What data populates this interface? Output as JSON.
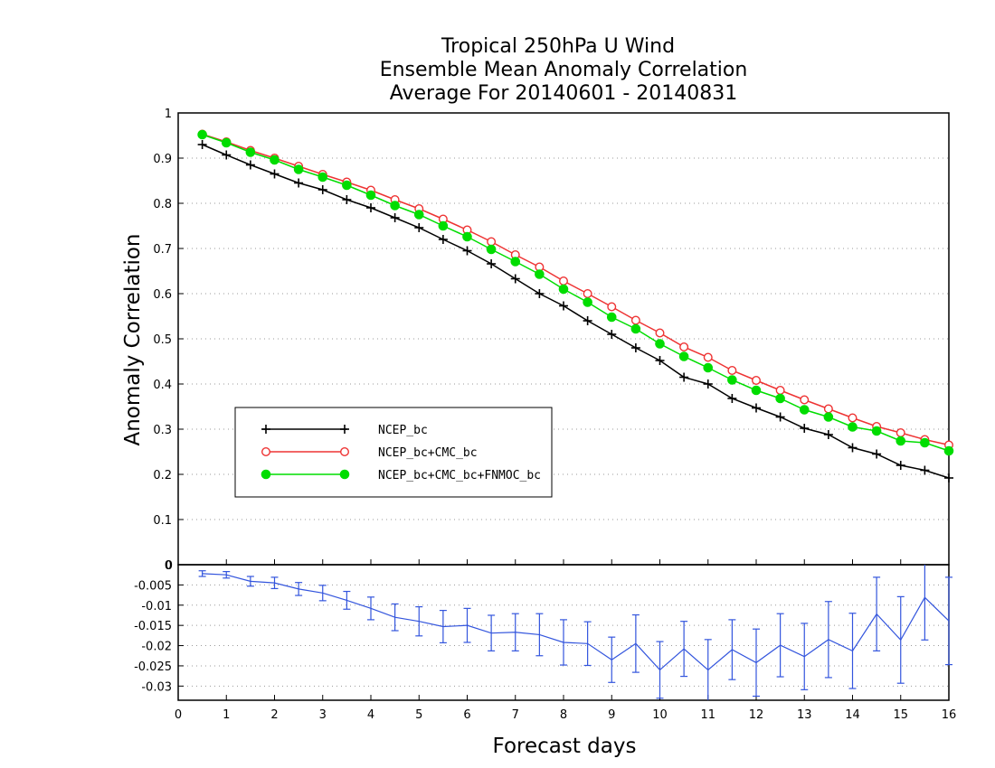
{
  "chart_data": [
    {
      "type": "line",
      "title_lines": [
        "Tropical 250hPa U Wind",
        "Ensemble Mean Anomaly Correlation",
        "Average For 20140601 - 20140831"
      ],
      "ylabel": "Anomaly Correlation",
      "xlim": [
        0,
        16
      ],
      "ylim": [
        0,
        1
      ],
      "yticks": [
        "0",
        "0.1",
        "0.2",
        "0.3",
        "0.4",
        "0.5",
        "0.6",
        "0.7",
        "0.8",
        "0.9",
        "1"
      ],
      "ytick_values": [
        0,
        0.1,
        0.2,
        0.3,
        0.4,
        0.5,
        0.6,
        0.7,
        0.8,
        0.9,
        1
      ],
      "grid": true,
      "legend_position": "left",
      "x": [
        0.5,
        1,
        1.5,
        2,
        2.5,
        3,
        3.5,
        4,
        4.5,
        5,
        5.5,
        6,
        6.5,
        7,
        7.5,
        8,
        8.5,
        9,
        9.5,
        10,
        10.5,
        11,
        11.5,
        12,
        12.5,
        13,
        13.5,
        14,
        14.5,
        15,
        15.5,
        16
      ],
      "series": [
        {
          "name": "NCEP_bc",
          "color": "#000000",
          "marker": "plus",
          "values": [
            0.93,
            0.907,
            0.885,
            0.865,
            0.845,
            0.83,
            0.808,
            0.79,
            0.768,
            0.746,
            0.72,
            0.695,
            0.666,
            0.633,
            0.6,
            0.573,
            0.54,
            0.51,
            0.48,
            0.452,
            0.415,
            0.4,
            0.368,
            0.347,
            0.327,
            0.302,
            0.288,
            0.259,
            0.245,
            0.22,
            0.209,
            0.192
          ]
        },
        {
          "name": "NCEP_bc+CMC_bc",
          "color": "#ee3333",
          "marker": "open-circle",
          "values": [
            0.953,
            0.936,
            0.917,
            0.9,
            0.882,
            0.864,
            0.847,
            0.829,
            0.808,
            0.788,
            0.765,
            0.741,
            0.715,
            0.686,
            0.659,
            0.628,
            0.6,
            0.571,
            0.541,
            0.513,
            0.482,
            0.459,
            0.43,
            0.408,
            0.386,
            0.365,
            0.345,
            0.325,
            0.306,
            0.292,
            0.277,
            0.265
          ]
        },
        {
          "name": "NCEP_bc+CMC_bc+FNMOC_bc",
          "color": "#00dd00",
          "marker": "filled-circle",
          "values": [
            0.952,
            0.934,
            0.913,
            0.896,
            0.875,
            0.858,
            0.84,
            0.818,
            0.795,
            0.775,
            0.75,
            0.726,
            0.698,
            0.671,
            0.643,
            0.61,
            0.581,
            0.548,
            0.522,
            0.489,
            0.461,
            0.436,
            0.409,
            0.386,
            0.368,
            0.343,
            0.327,
            0.305,
            0.296,
            0.274,
            0.27,
            0.252
          ]
        }
      ]
    },
    {
      "type": "line",
      "xlabel": "Forecast days",
      "xlim": [
        0,
        16
      ],
      "xticks": [
        "0",
        "1",
        "2",
        "3",
        "4",
        "5",
        "6",
        "7",
        "8",
        "9",
        "10",
        "11",
        "12",
        "13",
        "14",
        "15",
        "16"
      ],
      "xtick_values": [
        0,
        1,
        2,
        3,
        4,
        5,
        6,
        7,
        8,
        9,
        10,
        11,
        12,
        13,
        14,
        15,
        16
      ],
      "ylim": [
        -0.0335,
        0
      ],
      "yticks": [
        "-0.03",
        "-0.025",
        "-0.02",
        "-0.015",
        "-0.01",
        "-0.005",
        "0"
      ],
      "ytick_values": [
        -0.03,
        -0.025,
        -0.02,
        -0.015,
        -0.01,
        -0.005,
        0
      ],
      "top_label": "0",
      "grid": true,
      "zero_line": "dashed",
      "error_bars": true,
      "color": "#3355dd",
      "x": [
        0.5,
        1,
        1.5,
        2,
        2.5,
        3,
        3.5,
        4,
        4.5,
        5,
        5.5,
        6,
        6.5,
        7,
        7.5,
        8,
        8.5,
        9,
        9.5,
        10,
        10.5,
        11,
        11.5,
        12,
        12.5,
        13,
        13.5,
        14,
        14.5,
        15,
        15.5,
        16
      ],
      "values": [
        -0.0022,
        -0.0025,
        -0.0041,
        -0.0045,
        -0.006,
        -0.007,
        -0.0088,
        -0.0108,
        -0.013,
        -0.014,
        -0.0153,
        -0.015,
        -0.0169,
        -0.0167,
        -0.0173,
        -0.0192,
        -0.0195,
        -0.0235,
        -0.0195,
        -0.026,
        -0.0208,
        -0.026,
        -0.021,
        -0.0242,
        -0.0199,
        -0.0227,
        -0.0185,
        -0.0213,
        -0.0122,
        -0.0186,
        -0.0081,
        -0.0139
      ],
      "errors": [
        0.0007,
        0.0008,
        0.0012,
        0.0014,
        0.0016,
        0.0019,
        0.0022,
        0.0028,
        0.0033,
        0.0036,
        0.004,
        0.0042,
        0.0044,
        0.0046,
        0.0052,
        0.0056,
        0.0054,
        0.0056,
        0.0071,
        0.007,
        0.0068,
        0.0075,
        0.0074,
        0.0083,
        0.0078,
        0.0082,
        0.0094,
        0.0093,
        0.0091,
        0.0107,
        0.0105,
        0.0108
      ]
    }
  ]
}
